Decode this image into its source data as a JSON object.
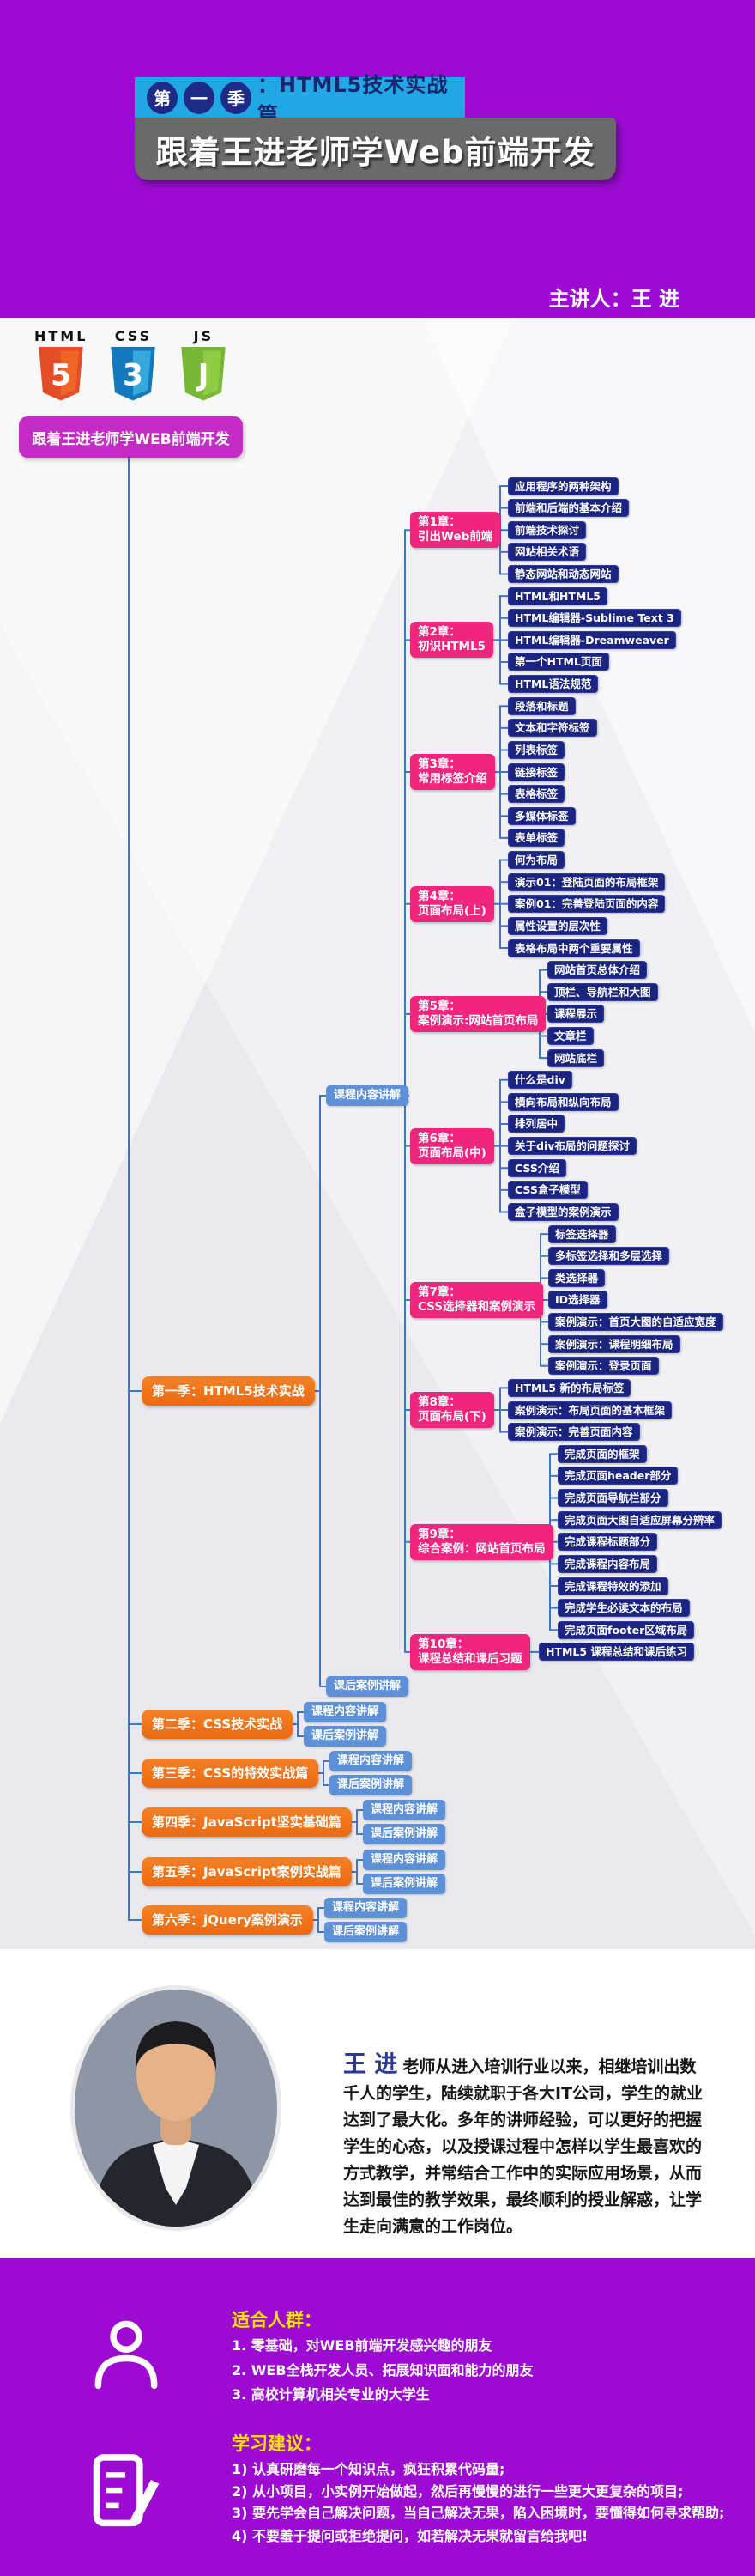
{
  "banner": {
    "badge": {
      "circles": [
        "第",
        "一",
        "季"
      ],
      "text": "：HTML5技术实战篇"
    },
    "title": "跟着王进老师学Web前端开发",
    "presenter": "主讲人：王 进"
  },
  "logos": [
    {
      "label": "HTML",
      "numeral": "5"
    },
    {
      "label": "CSS",
      "numeral": "3"
    },
    {
      "label": "JS",
      "numeral": "J"
    }
  ],
  "mindmap": {
    "root": "跟着王进老师学WEB前端开发",
    "seasons": [
      {
        "label": "第一季：HTML5技术实战",
        "children": [
          "课程内容讲解",
          "课后案例讲解"
        ]
      },
      {
        "label": "第二季：CSS技术实战",
        "children": [
          "课程内容讲解",
          "课后案例讲解"
        ]
      },
      {
        "label": "第三季：CSS的特效实战篇",
        "children": [
          "课程内容讲解",
          "课后案例讲解"
        ]
      },
      {
        "label": "第四季：JavaScript坚实基础篇",
        "children": [
          "课程内容讲解",
          "课后案例讲解"
        ]
      },
      {
        "label": "第五季：JavaScript案例实战篇",
        "children": [
          "课程内容讲解",
          "课后案例讲解"
        ]
      },
      {
        "label": "第六季：jQuery案例演示",
        "children": [
          "课程内容讲解",
          "课后案例讲解"
        ]
      }
    ],
    "chapters": [
      {
        "line1": "第1章：",
        "line2": "引出Web前端",
        "leaves": [
          "应用程序的两种架构",
          "前端和后端的基本介绍",
          "前端技术探讨",
          "网站相关术语",
          "静态网站和动态网站"
        ]
      },
      {
        "line1": "第2章：",
        "line2": "初识HTML5",
        "leaves": [
          "HTML和HTML5",
          "HTML编辑器-Sublime Text 3",
          "HTML编辑器-Dreamweaver",
          "第一个HTML页面",
          "HTML语法规范"
        ]
      },
      {
        "line1": "第3章：",
        "line2": "常用标签介绍",
        "leaves": [
          "段落和标题",
          "文本和字符标签",
          "列表标签",
          "链接标签",
          "表格标签",
          "多媒体标签",
          "表单标签"
        ]
      },
      {
        "line1": "第4章：",
        "line2": "页面布局(上)",
        "leaves": [
          "何为布局",
          "演示01：登陆页面的布局框架",
          "案例01：完善登陆页面的内容",
          "属性设置的层次性",
          "表格布局中两个重要属性"
        ]
      },
      {
        "line1": "第5章：",
        "line2": "案例演示:网站首页布局",
        "leaves": [
          "网站首页总体介绍",
          "顶栏、导航栏和大图",
          "课程展示",
          "文章栏",
          "网站底栏"
        ]
      },
      {
        "line1": "第6章：",
        "line2": "页面布局(中)",
        "leaves": [
          "什么是div",
          "横向布局和纵向布局",
          "排列居中",
          "关于div布局的问题探讨",
          "CSS介绍",
          "CSS盒子模型",
          "盒子模型的案例演示"
        ]
      },
      {
        "line1": "第7章：",
        "line2": "CSS选择器和案例演示",
        "leaves": [
          "标签选择器",
          "多标签选择和多层选择",
          "类选择器",
          "ID选择器",
          "案例演示：首页大图的自适应宽度",
          "案例演示：课程明细布局",
          "案例演示：登录页面"
        ]
      },
      {
        "line1": "第8章：",
        "line2": "页面布局(下)",
        "leaves": [
          "HTML5 新的布局标签",
          "案例演示：布局页面的基本框架",
          "案例演示：完善页面内容"
        ]
      },
      {
        "line1": "第9章：",
        "line2": "综合案例：网站首页布局",
        "leaves": [
          "完成页面的框架",
          "完成页面header部分",
          "完成页面导航栏部分",
          "完成页面大图自适应屏幕分辨率",
          "完成课程标题部分",
          "完成课程内容布局",
          "完成课程特效的添加",
          "完成学生必读文本的布局",
          "完成页面footer区域布局"
        ]
      },
      {
        "line1": "第10章：",
        "line2": "课程总结和课后习题",
        "leaves": [
          "HTML5 课程总结和课后练习"
        ]
      }
    ]
  },
  "instructor": {
    "name": "王 进",
    "bio": "老师从进入培训行业以来，相继培训出数千人的学生，陆续就职于各大IT公司，学生的就业达到了最大化。多年的讲师经验，可以更好的把握学生的心态，以及授课过程中怎样以学生最喜欢的方式教学，并常结合工作中的实际应用场景，从而达到最佳的教学效果，最终顺利的授业解惑，让学生走向满意的工作岗位。"
  },
  "audience": {
    "heading": "适合人群：",
    "items": [
      "1. 零基础，对WEB前端开发感兴趣的朋友",
      "2. WEB全栈开发人员、拓展知识面和能力的朋友",
      "3. 高校计算机相关专业的大学生"
    ]
  },
  "advice": {
    "heading": "学习建议：",
    "items": [
      "1) 认真研磨每一个知识点，疯狂积累代码量;",
      "2) 从小项目，小实例开始做起，然后再慢慢的进行一些更大更复杂的项目;",
      "3) 要先学会自己解决问题，当自己解决无果，陷入困境时，要懂得如何寻求帮助;",
      "4) 不要羞于提问或拒绝提问，如若解决无果就留言给我吧!"
    ]
  },
  "colors": {
    "banner_purple": "#9D0BD3",
    "badge_cyan": "#22A7E5",
    "badge_navy": "#1D2B86",
    "root_magenta": "#C52BC5",
    "season_orange": "#F0741F",
    "branch_blue": "#5E90D8",
    "chapter_pink": "#F1247E",
    "leaf_navy": "#1B2580",
    "connector_blue": "#3F76C6",
    "heading_yellow": "#FFE600"
  }
}
